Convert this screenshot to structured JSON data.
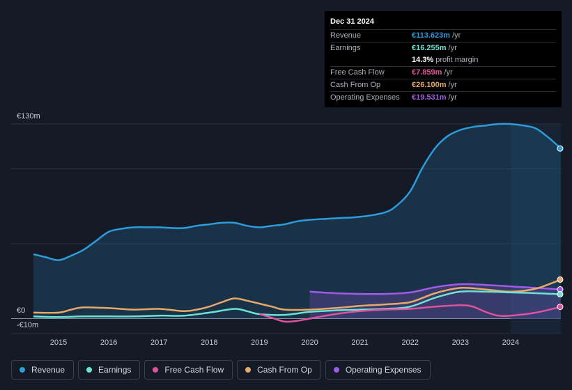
{
  "tooltip": {
    "date": "Dec 31 2024",
    "rows": [
      {
        "label": "Revenue",
        "value": "€113.623m",
        "unit": "/yr",
        "color": "#2d9cdb"
      },
      {
        "label": "Earnings",
        "value": "€16.255m",
        "unit": "/yr",
        "color": "#6fe3d3"
      },
      {
        "label": "",
        "value": "14.3%",
        "unit": "profit margin",
        "color": "#ffffff"
      },
      {
        "label": "Free Cash Flow",
        "value": "€7.859m",
        "unit": "/yr",
        "color": "#e0529c"
      },
      {
        "label": "Cash From Op",
        "value": "€26.100m",
        "unit": "/yr",
        "color": "#e8a86a"
      },
      {
        "label": "Operating Expenses",
        "value": "€19.531m",
        "unit": "/yr",
        "color": "#a05ce8"
      }
    ]
  },
  "legend": [
    {
      "label": "Revenue",
      "color": "#2d9cdb"
    },
    {
      "label": "Earnings",
      "color": "#6fe3d3"
    },
    {
      "label": "Free Cash Flow",
      "color": "#e0529c"
    },
    {
      "label": "Cash From Op",
      "color": "#e8a86a"
    },
    {
      "label": "Operating Expenses",
      "color": "#a05ce8"
    }
  ],
  "chart_data": {
    "type": "area",
    "y_top_label": "€130m",
    "y_zero_label": "€0",
    "y_bottom_label": "-€10m",
    "ylim": [
      -10,
      130
    ],
    "xlim": [
      2014.5,
      2025.0
    ],
    "highlight_from": 2024.0,
    "x_ticks": [
      "2015",
      "2016",
      "2017",
      "2018",
      "2019",
      "2020",
      "2021",
      "2022",
      "2023",
      "2024"
    ],
    "series": [
      {
        "name": "Revenue",
        "color": "#2d9cdb",
        "fill": true,
        "points": [
          [
            2014.5,
            43
          ],
          [
            2014.75,
            41
          ],
          [
            2015.0,
            39
          ],
          [
            2015.25,
            42
          ],
          [
            2015.5,
            46
          ],
          [
            2015.75,
            52
          ],
          [
            2016.0,
            58
          ],
          [
            2016.25,
            60
          ],
          [
            2016.5,
            61
          ],
          [
            2016.75,
            61
          ],
          [
            2017.0,
            61
          ],
          [
            2017.25,
            60.5
          ],
          [
            2017.5,
            60.5
          ],
          [
            2017.75,
            62
          ],
          [
            2018.0,
            63
          ],
          [
            2018.25,
            64
          ],
          [
            2018.5,
            64
          ],
          [
            2018.75,
            62
          ],
          [
            2019.0,
            61
          ],
          [
            2019.25,
            62
          ],
          [
            2019.5,
            63
          ],
          [
            2019.75,
            65
          ],
          [
            2020.0,
            66
          ],
          [
            2020.5,
            67
          ],
          [
            2021.0,
            68
          ],
          [
            2021.5,
            71
          ],
          [
            2021.75,
            76
          ],
          [
            2022.0,
            85
          ],
          [
            2022.25,
            101
          ],
          [
            2022.5,
            114
          ],
          [
            2022.75,
            122
          ],
          [
            2023.0,
            126
          ],
          [
            2023.25,
            128
          ],
          [
            2023.5,
            129
          ],
          [
            2023.75,
            130
          ],
          [
            2024.0,
            130
          ],
          [
            2024.25,
            129
          ],
          [
            2024.5,
            127
          ],
          [
            2024.75,
            121
          ],
          [
            2025.0,
            113.623
          ]
        ]
      },
      {
        "name": "Operating Expenses",
        "color": "#a05ce8",
        "fill": true,
        "points": [
          [
            2020.0,
            18
          ],
          [
            2020.5,
            17
          ],
          [
            2021.0,
            16.5
          ],
          [
            2021.5,
            16.5
          ],
          [
            2022.0,
            17.5
          ],
          [
            2022.5,
            21
          ],
          [
            2023.0,
            23
          ],
          [
            2023.5,
            22.5
          ],
          [
            2024.0,
            21.5
          ],
          [
            2024.5,
            20.5
          ],
          [
            2025.0,
            19.531
          ]
        ]
      },
      {
        "name": "Cash From Op",
        "color": "#e8a86a",
        "fill": false,
        "points": [
          [
            2014.5,
            4
          ],
          [
            2015.0,
            4
          ],
          [
            2015.25,
            6
          ],
          [
            2015.5,
            7.5
          ],
          [
            2016.0,
            7
          ],
          [
            2016.5,
            6
          ],
          [
            2017.0,
            6.5
          ],
          [
            2017.5,
            5
          ],
          [
            2017.75,
            6
          ],
          [
            2018.0,
            8
          ],
          [
            2018.25,
            11
          ],
          [
            2018.5,
            13.5
          ],
          [
            2018.75,
            12
          ],
          [
            2019.0,
            10
          ],
          [
            2019.25,
            8
          ],
          [
            2019.5,
            6
          ],
          [
            2020.0,
            6
          ],
          [
            2020.5,
            7
          ],
          [
            2021.0,
            8.5
          ],
          [
            2021.5,
            9.5
          ],
          [
            2022.0,
            11
          ],
          [
            2022.5,
            17
          ],
          [
            2023.0,
            20.5
          ],
          [
            2023.5,
            19.5
          ],
          [
            2024.0,
            18
          ],
          [
            2024.5,
            20
          ],
          [
            2025.0,
            26.1
          ]
        ]
      },
      {
        "name": "Earnings",
        "color": "#6fe3d3",
        "fill": false,
        "points": [
          [
            2014.5,
            1.5
          ],
          [
            2015.0,
            1
          ],
          [
            2015.5,
            1.5
          ],
          [
            2016.0,
            1.5
          ],
          [
            2016.5,
            1.5
          ],
          [
            2017.0,
            2
          ],
          [
            2017.5,
            2
          ],
          [
            2018.0,
            4
          ],
          [
            2018.5,
            6.5
          ],
          [
            2018.75,
            5
          ],
          [
            2019.0,
            3
          ],
          [
            2019.5,
            2.5
          ],
          [
            2020.0,
            4.5
          ],
          [
            2020.5,
            5.5
          ],
          [
            2021.0,
            6
          ],
          [
            2021.5,
            6.5
          ],
          [
            2022.0,
            8
          ],
          [
            2022.5,
            14
          ],
          [
            2023.0,
            18
          ],
          [
            2023.5,
            18
          ],
          [
            2024.0,
            17.5
          ],
          [
            2024.5,
            17
          ],
          [
            2025.0,
            16.255
          ]
        ]
      },
      {
        "name": "Free Cash Flow",
        "color": "#e0529c",
        "fill": false,
        "points": [
          [
            2019.0,
            3
          ],
          [
            2019.25,
            0.5
          ],
          [
            2019.5,
            -2
          ],
          [
            2019.75,
            -1.5
          ],
          [
            2020.0,
            0
          ],
          [
            2020.5,
            3
          ],
          [
            2021.0,
            5
          ],
          [
            2021.5,
            6
          ],
          [
            2022.0,
            6.5
          ],
          [
            2022.5,
            8
          ],
          [
            2023.0,
            9
          ],
          [
            2023.25,
            8
          ],
          [
            2023.5,
            4.5
          ],
          [
            2023.75,
            2
          ],
          [
            2024.0,
            2
          ],
          [
            2024.5,
            4
          ],
          [
            2025.0,
            7.859
          ]
        ]
      }
    ]
  }
}
